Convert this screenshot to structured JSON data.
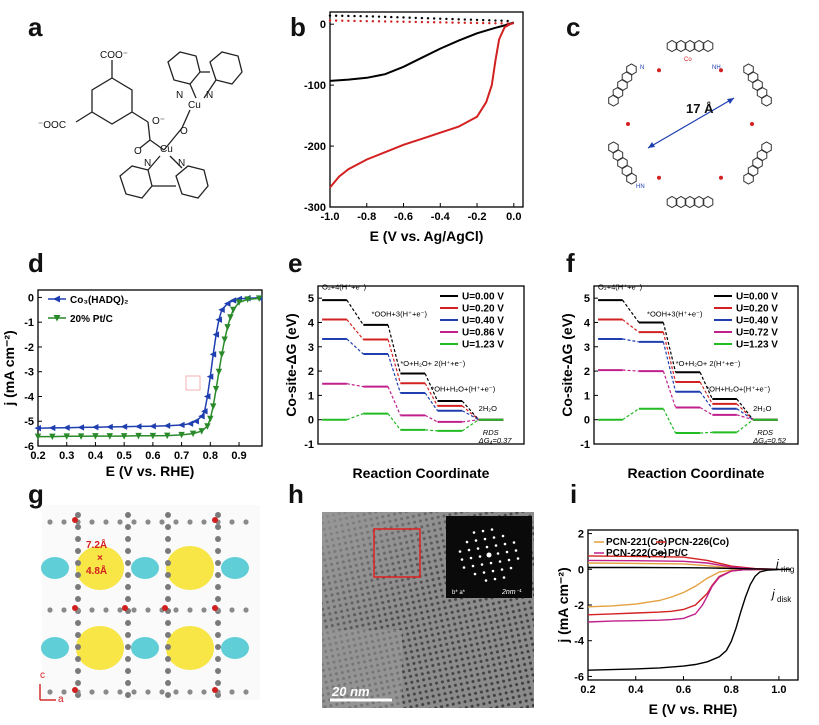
{
  "panel_labels": [
    "a",
    "b",
    "c",
    "d",
    "e",
    "f",
    "g",
    "h",
    "i"
  ],
  "structure_a": {
    "groups": [
      "COO⁻",
      "⁻OOC",
      "O⁻",
      "O",
      "O",
      "Cu",
      "Cu",
      "N",
      "N",
      "N",
      "N"
    ]
  },
  "pore_c": {
    "label": "17 Å",
    "atoms": [
      "Co",
      "N",
      "NH",
      "HN"
    ]
  },
  "mof_g": {
    "pore_label_1": "7.2Å",
    "pore_label_x": "×",
    "pore_label_2": "4.8Å",
    "axis_c": "c",
    "axis_a": "a"
  },
  "tem_h": {
    "scalebar": "20 nm",
    "fft_scale": "2nm⁻¹",
    "fft_axes": "b* a*"
  },
  "colors": {
    "black": "#000000",
    "red": "#d32020",
    "blue": "#1f3fb0",
    "green": "#2a8a2a",
    "magenta": "#c0208c",
    "orange": "#e5a040",
    "bright_green": "#22bb22",
    "pore_yellow": "#f7e232",
    "pore_cyan": "#44c5d0"
  },
  "chart_data": [
    {
      "id": "b",
      "type": "line",
      "xlabel": "E (V vs. Ag/AgCl)",
      "ylabel": "",
      "xlim": [
        -1.0,
        0.05
      ],
      "ylim": [
        -300,
        20
      ],
      "xticks": [
        "-1.0",
        "-0.8",
        "-0.6",
        "-0.4",
        "-0.2",
        "0.0"
      ],
      "yticks": [
        "0",
        "-100",
        "-200",
        "-300"
      ],
      "series": [
        {
          "style": "solid",
          "color": "#000000",
          "x": [
            -1.0,
            -0.9,
            -0.8,
            -0.7,
            -0.6,
            -0.5,
            -0.4,
            -0.3,
            -0.2,
            -0.1,
            -0.05,
            0.0
          ],
          "y": [
            -93,
            -91,
            -88,
            -82,
            -70,
            -55,
            -40,
            -27,
            -15,
            -6,
            -2,
            3
          ]
        },
        {
          "style": "solid",
          "color": "#d32020",
          "x": [
            -1.0,
            -0.95,
            -0.9,
            -0.8,
            -0.7,
            -0.6,
            -0.5,
            -0.4,
            -0.3,
            -0.2,
            -0.15,
            -0.12,
            -0.1,
            -0.08,
            -0.05,
            -0.02,
            0.0
          ],
          "y": [
            -268,
            -250,
            -238,
            -222,
            -210,
            -198,
            -188,
            -178,
            -168,
            -152,
            -128,
            -100,
            -60,
            -25,
            -5,
            0,
            2
          ]
        },
        {
          "style": "dotted",
          "color": "#000000",
          "x": [
            -1.0,
            -0.8,
            -0.6,
            -0.4,
            -0.2,
            0.0
          ],
          "y": [
            14,
            13,
            11,
            9,
            7,
            5
          ]
        },
        {
          "style": "dotted",
          "color": "#d32020",
          "x": [
            -1.0,
            -0.8,
            -0.6,
            -0.4,
            -0.2,
            0.0
          ],
          "y": [
            6,
            5,
            4,
            3,
            2,
            1
          ]
        }
      ]
    },
    {
      "id": "d",
      "type": "line",
      "xlabel": "E (V vs. RHE)",
      "ylabel": "j (mA cm⁻²)",
      "xlim": [
        0.2,
        0.98
      ],
      "ylim": [
        -6,
        0.3
      ],
      "xticks": [
        "0.2",
        "0.3",
        "0.4",
        "0.5",
        "0.6",
        "0.7",
        "0.8",
        "0.9"
      ],
      "yticks": [
        "0",
        "-1",
        "-2",
        "-3",
        "-4",
        "-5",
        "-6"
      ],
      "series": [
        {
          "name": "Co₃(HADQ)₂",
          "color": "#1f3fb0",
          "marker": "triangle-left",
          "x": [
            0.2,
            0.25,
            0.3,
            0.35,
            0.4,
            0.45,
            0.5,
            0.55,
            0.6,
            0.65,
            0.7,
            0.73,
            0.75,
            0.77,
            0.78,
            0.79,
            0.8,
            0.81,
            0.82,
            0.83,
            0.84,
            0.86,
            0.88,
            0.9,
            0.93,
            0.97
          ],
          "y": [
            -5.28,
            -5.27,
            -5.26,
            -5.25,
            -5.24,
            -5.23,
            -5.22,
            -5.21,
            -5.2,
            -5.18,
            -5.15,
            -5.1,
            -5.0,
            -4.8,
            -4.6,
            -4.0,
            -3.2,
            -2.3,
            -1.5,
            -0.9,
            -0.5,
            -0.25,
            -0.12,
            -0.06,
            -0.03,
            -0.02
          ]
        },
        {
          "name": "20% Pt/C",
          "color": "#2a8a2a",
          "marker": "triangle-down",
          "x": [
            0.2,
            0.25,
            0.3,
            0.35,
            0.4,
            0.45,
            0.5,
            0.55,
            0.6,
            0.65,
            0.7,
            0.74,
            0.77,
            0.79,
            0.8,
            0.81,
            0.82,
            0.83,
            0.84,
            0.85,
            0.86,
            0.87,
            0.88,
            0.9,
            0.93,
            0.97
          ],
          "y": [
            -5.62,
            -5.62,
            -5.61,
            -5.61,
            -5.6,
            -5.6,
            -5.6,
            -5.59,
            -5.59,
            -5.58,
            -5.55,
            -5.5,
            -5.4,
            -5.2,
            -4.9,
            -4.4,
            -3.7,
            -3.0,
            -2.3,
            -1.7,
            -1.2,
            -0.8,
            -0.5,
            -0.2,
            -0.08,
            -0.04
          ]
        }
      ]
    },
    {
      "id": "e",
      "type": "line",
      "xlabel": "Reaction Coordinate",
      "ylabel": "Co-site-ΔG (eV)",
      "ylim": [
        -1,
        5.5
      ],
      "yticks": [
        "-1",
        "0",
        "1",
        "2",
        "3",
        "4",
        "5"
      ],
      "legend": [
        "U=0.00 V",
        "U=0.20 V",
        "U=0.40 V",
        "U=0.86 V",
        "U=1.23 V"
      ],
      "annotations": [
        "O₂+4(H⁺+e⁻)",
        "*OOH+3(H⁺+e⁻)",
        "*O+H₂O+ 2(H⁺+e⁻)",
        "*OH+H₂O+(H⁺+e⁻)",
        "2H₂O",
        "RDS",
        "ΔG₄=0.37"
      ],
      "series": [
        {
          "name": "U=0.00 V",
          "color": "#000000",
          "levels": [
            4.92,
            3.9,
            1.9,
            0.77,
            0
          ]
        },
        {
          "name": "U=0.20 V",
          "color": "#d32020",
          "levels": [
            4.12,
            3.3,
            1.5,
            0.57,
            0
          ]
        },
        {
          "name": "U=0.40 V",
          "color": "#1f3fb0",
          "levels": [
            3.32,
            2.7,
            1.1,
            0.37,
            0
          ]
        },
        {
          "name": "U=0.86 V",
          "color": "#c0208c",
          "levels": [
            1.48,
            1.36,
            0.18,
            -0.09,
            0
          ]
        },
        {
          "name": "U=1.23 V",
          "color": "#22bb22",
          "levels": [
            0.0,
            0.25,
            -0.42,
            -0.46,
            0
          ]
        }
      ]
    },
    {
      "id": "f",
      "type": "line",
      "xlabel": "Reaction Coordinate",
      "ylabel": "Co-site-ΔG (eV)",
      "ylim": [
        -1,
        5.5
      ],
      "yticks": [
        "-1",
        "0",
        "1",
        "2",
        "3",
        "4",
        "5"
      ],
      "legend": [
        "U=0.00 V",
        "U=0.20 V",
        "U=0.40 V",
        "U=0.72 V",
        "U=1.23 V"
      ],
      "annotations": [
        "O₂+4(H⁺+e⁻)",
        "*OOH+3(H⁺+e⁻)",
        "*O+H₂O+ 2(H⁺+e⁻)",
        "*OH+H₂O+(H⁺+e⁻)",
        "2H₂O",
        "RDS",
        "ΔG₄=0.52"
      ],
      "series": [
        {
          "name": "U=0.00 V",
          "color": "#000000",
          "levels": [
            4.92,
            4.0,
            1.95,
            0.85,
            0
          ]
        },
        {
          "name": "U=0.20 V",
          "color": "#d32020",
          "levels": [
            4.12,
            3.6,
            1.55,
            0.65,
            0
          ]
        },
        {
          "name": "U=0.40 V",
          "color": "#1f3fb0",
          "levels": [
            3.32,
            3.2,
            1.15,
            0.45,
            0
          ]
        },
        {
          "name": "U=0.72 V",
          "color": "#c0208c",
          "levels": [
            2.04,
            2.0,
            0.5,
            0.2,
            0
          ]
        },
        {
          "name": "U=1.23 V",
          "color": "#22bb22",
          "levels": [
            0.0,
            0.45,
            -0.55,
            -0.52,
            0
          ]
        }
      ]
    },
    {
      "id": "i",
      "type": "line",
      "xlabel": "E (V vs. RHE)",
      "ylabel": "j (mA cm⁻²)",
      "xlim": [
        0.2,
        1.08
      ],
      "ylim": [
        -6.2,
        2.2
      ],
      "xticks": [
        "0.2",
        "0.4",
        "0.6",
        "0.8",
        "1.0"
      ],
      "yticks": [
        "2",
        "0",
        "-2",
        "-4",
        "-6"
      ],
      "side_labels": [
        "j",
        "ring",
        "j",
        "disk"
      ],
      "series": [
        {
          "name": "PCN-221(Co)",
          "color": "#e5a040",
          "x": [
            0.2,
            0.3,
            0.4,
            0.5,
            0.55,
            0.6,
            0.65,
            0.7,
            0.75,
            0.8,
            0.85,
            0.9,
            1.0
          ],
          "y": [
            -2.1,
            -2.05,
            -1.95,
            -1.75,
            -1.55,
            -1.3,
            -0.95,
            -0.5,
            -0.15,
            -0.05,
            -0.02,
            -0.01,
            0
          ]
        },
        {
          "name": "PCN-226(Co)",
          "color": "#d32020",
          "x": [
            0.2,
            0.3,
            0.4,
            0.5,
            0.55,
            0.6,
            0.65,
            0.7,
            0.72,
            0.75,
            0.8,
            0.85,
            0.9,
            1.0
          ],
          "y": [
            -2.55,
            -2.5,
            -2.45,
            -2.4,
            -2.35,
            -2.25,
            -2.0,
            -1.35,
            -0.9,
            -0.4,
            -0.1,
            -0.03,
            -0.01,
            0
          ]
        },
        {
          "name": "PCN-222(Co)",
          "color": "#c0208c",
          "x": [
            0.2,
            0.3,
            0.4,
            0.5,
            0.55,
            0.6,
            0.65,
            0.68,
            0.7,
            0.72,
            0.75,
            0.8,
            0.85,
            0.9,
            1.0
          ],
          "y": [
            -2.95,
            -2.9,
            -2.88,
            -2.85,
            -2.82,
            -2.75,
            -2.5,
            -2.0,
            -1.5,
            -0.95,
            -0.45,
            -0.1,
            -0.03,
            -0.01,
            0
          ]
        },
        {
          "name": "Pt/C",
          "color": "#000000",
          "x": [
            0.2,
            0.3,
            0.4,
            0.5,
            0.6,
            0.65,
            0.7,
            0.75,
            0.78,
            0.8,
            0.82,
            0.84,
            0.86,
            0.88,
            0.9,
            0.92,
            0.95,
            1.0,
            1.05
          ],
          "y": [
            -5.65,
            -5.62,
            -5.58,
            -5.52,
            -5.42,
            -5.33,
            -5.18,
            -4.9,
            -4.55,
            -4.05,
            -3.3,
            -2.4,
            -1.55,
            -0.85,
            -0.4,
            -0.15,
            -0.05,
            -0.01,
            0
          ]
        },
        {
          "name": "ring-PCN-221(Co)",
          "color": "#e5a040",
          "x": [
            0.2,
            0.4,
            0.6,
            0.7,
            0.8,
            0.9,
            1.0
          ],
          "y": [
            0.35,
            0.33,
            0.3,
            0.2,
            0.08,
            0.02,
            0
          ]
        },
        {
          "name": "ring-PCN-226(Co)",
          "color": "#d32020",
          "x": [
            0.2,
            0.4,
            0.6,
            0.7,
            0.8,
            0.9,
            1.0
          ],
          "y": [
            0.75,
            0.72,
            0.68,
            0.5,
            0.18,
            0.04,
            0
          ]
        },
        {
          "name": "ring-PCN-222(Co)",
          "color": "#c0208c",
          "x": [
            0.2,
            0.4,
            0.6,
            0.7,
            0.8,
            0.9,
            1.0
          ],
          "y": [
            0.5,
            0.48,
            0.45,
            0.35,
            0.12,
            0.03,
            0
          ]
        },
        {
          "name": "ring-Pt/C",
          "color": "#000000",
          "x": [
            0.2,
            0.4,
            0.6,
            0.7,
            0.8,
            0.9,
            1.0
          ],
          "y": [
            0.1,
            0.1,
            0.09,
            0.08,
            0.05,
            0.02,
            0
          ]
        }
      ]
    }
  ]
}
